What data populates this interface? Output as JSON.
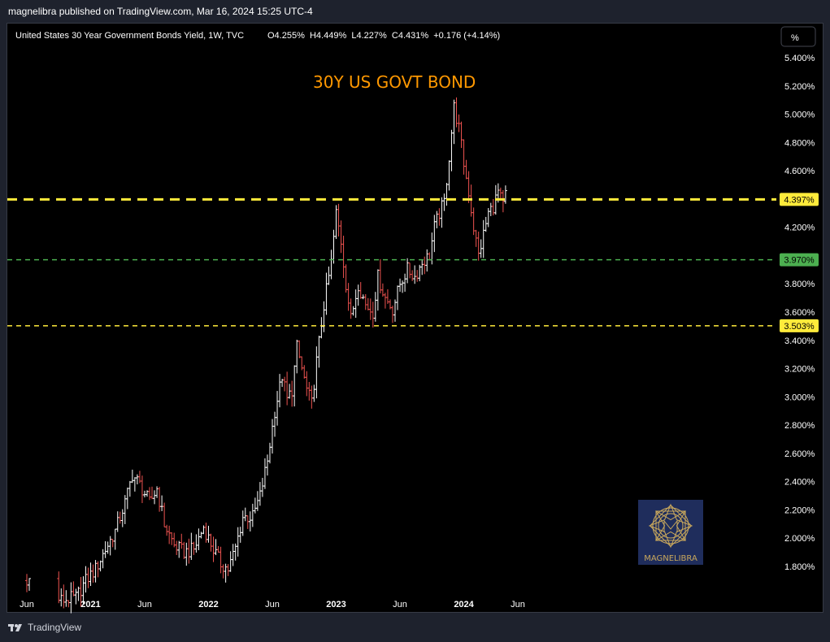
{
  "header": {
    "publisher": "magnelibra published on TradingView.com, Mar 16, 2024 15:25 UTC-4"
  },
  "legend": {
    "symbol": "United States 30 Year Government Bonds Yield, 1W, TVC",
    "ohlc": "O4.255%  H4.449%  L4.227%  C4.431%  +0.176 (+4.14%)"
  },
  "scale_button": "%",
  "annotation": "30Y US GOVT BOND",
  "watermark": "MAGNELIBRA",
  "footer": {
    "brand": "TradingView"
  },
  "colors": {
    "up": "#ffffff",
    "down": "#ef5350",
    "resistance": "#ffeb3b",
    "support": "#4caf50",
    "annotation": "#ff9800",
    "watermark_bg": "#1f2d5c",
    "watermark_gold": "#c9a85c"
  },
  "chart_data": {
    "type": "ohlc",
    "interval": "1W",
    "ylim": [
      1.66,
      5.5
    ],
    "y_ticks": [
      "5.400%",
      "5.200%",
      "5.000%",
      "4.800%",
      "4.600%",
      "4.200%",
      "3.800%",
      "3.600%",
      "3.400%",
      "3.200%",
      "3.000%",
      "2.800%",
      "2.600%",
      "2.400%",
      "2.200%",
      "2.000%",
      "1.800%"
    ],
    "x_ticks": [
      "Jun",
      "2021",
      "Jun",
      "2022",
      "Jun",
      "2023",
      "Jun",
      "2024",
      "Jun"
    ],
    "levels": [
      {
        "value": 4.397,
        "label": "4.397%",
        "color": "#ffeb3b",
        "style": "long-dash"
      },
      {
        "value": 3.97,
        "label": "3.970%",
        "color": "#4caf50",
        "style": "short-dash"
      },
      {
        "value": 3.503,
        "label": "3.503%",
        "color": "#ffeb3b",
        "style": "short-dash"
      }
    ],
    "path": [
      {
        "w": 0,
        "v": 1.7
      },
      {
        "w": 6,
        "v": 1.64
      },
      {
        "w": 14,
        "v": 1.56
      },
      {
        "w": 20,
        "v": 1.58
      },
      {
        "w": 24,
        "v": 1.7
      },
      {
        "w": 28,
        "v": 1.78
      },
      {
        "w": 32,
        "v": 1.92
      },
      {
        "w": 36,
        "v": 2.05
      },
      {
        "w": 40,
        "v": 2.25
      },
      {
        "w": 43,
        "v": 2.45
      },
      {
        "w": 46,
        "v": 2.38
      },
      {
        "w": 50,
        "v": 2.25
      },
      {
        "w": 53,
        "v": 2.35
      },
      {
        "w": 56,
        "v": 2.1
      },
      {
        "w": 60,
        "v": 1.95
      },
      {
        "w": 64,
        "v": 1.9
      },
      {
        "w": 68,
        "v": 1.92
      },
      {
        "w": 72,
        "v": 2.08
      },
      {
        "w": 76,
        "v": 1.92
      },
      {
        "w": 79,
        "v": 1.82
      },
      {
        "w": 82,
        "v": 1.78
      },
      {
        "w": 85,
        "v": 1.93
      },
      {
        "w": 88,
        "v": 2.15
      },
      {
        "w": 92,
        "v": 2.15
      },
      {
        "w": 95,
        "v": 2.3
      },
      {
        "w": 98,
        "v": 2.55
      },
      {
        "w": 101,
        "v": 2.9
      },
      {
        "w": 104,
        "v": 3.15
      },
      {
        "w": 106,
        "v": 2.98
      },
      {
        "w": 108,
        "v": 3.05
      },
      {
        "w": 110,
        "v": 3.35
      },
      {
        "w": 112,
        "v": 3.2
      },
      {
        "w": 114,
        "v": 3.05
      },
      {
        "w": 116,
        "v": 2.95
      },
      {
        "w": 118,
        "v": 3.25
      },
      {
        "w": 121,
        "v": 3.65
      },
      {
        "w": 124,
        "v": 3.95
      },
      {
        "w": 126,
        "v": 4.3
      },
      {
        "w": 128,
        "v": 4.1
      },
      {
        "w": 130,
        "v": 3.8
      },
      {
        "w": 132,
        "v": 3.55
      },
      {
        "w": 135,
        "v": 3.8
      },
      {
        "w": 138,
        "v": 3.65
      },
      {
        "w": 141,
        "v": 3.6
      },
      {
        "w": 143,
        "v": 3.85
      },
      {
        "w": 146,
        "v": 3.7
      },
      {
        "w": 149,
        "v": 3.62
      },
      {
        "w": 152,
        "v": 3.8
      },
      {
        "w": 155,
        "v": 3.9
      },
      {
        "w": 158,
        "v": 3.85
      },
      {
        "w": 161,
        "v": 3.95
      },
      {
        "w": 164,
        "v": 4.0
      },
      {
        "w": 166,
        "v": 4.2
      },
      {
        "w": 168,
        "v": 4.3
      },
      {
        "w": 170,
        "v": 4.38
      },
      {
        "w": 172,
        "v": 4.7
      },
      {
        "w": 174,
        "v": 5.05
      },
      {
        "w": 176,
        "v": 4.9
      },
      {
        "w": 178,
        "v": 4.65
      },
      {
        "w": 180,
        "v": 4.45
      },
      {
        "w": 182,
        "v": 4.2
      },
      {
        "w": 184,
        "v": 4.0
      },
      {
        "w": 186,
        "v": 4.15
      },
      {
        "w": 188,
        "v": 4.3
      },
      {
        "w": 190,
        "v": 4.35
      },
      {
        "w": 192,
        "v": 4.45
      },
      {
        "w": 194,
        "v": 4.35
      },
      {
        "w": 195,
        "v": 4.43
      }
    ]
  }
}
